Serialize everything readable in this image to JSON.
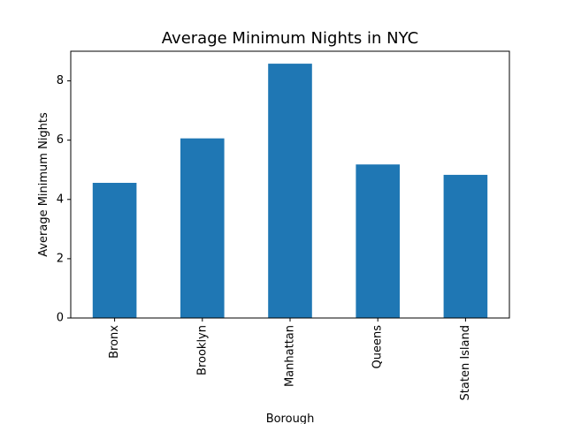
{
  "chart_data": {
    "type": "bar",
    "title": "Average Minimum Nights in NYC",
    "xlabel": "Borough",
    "ylabel": "Average Minimum Nights",
    "categories": [
      "Bronx",
      "Brooklyn",
      "Manhattan",
      "Queens",
      "Staten Island"
    ],
    "values": [
      4.56,
      6.06,
      8.58,
      5.18,
      4.83
    ],
    "ylim": [
      0,
      9.0
    ],
    "yticks": [
      0,
      2,
      4,
      6,
      8
    ],
    "ytick_labels": [
      "0",
      "2",
      "4",
      "6",
      "8"
    ],
    "grid": false,
    "legend": "none",
    "bar_color": "#1f77b4"
  }
}
